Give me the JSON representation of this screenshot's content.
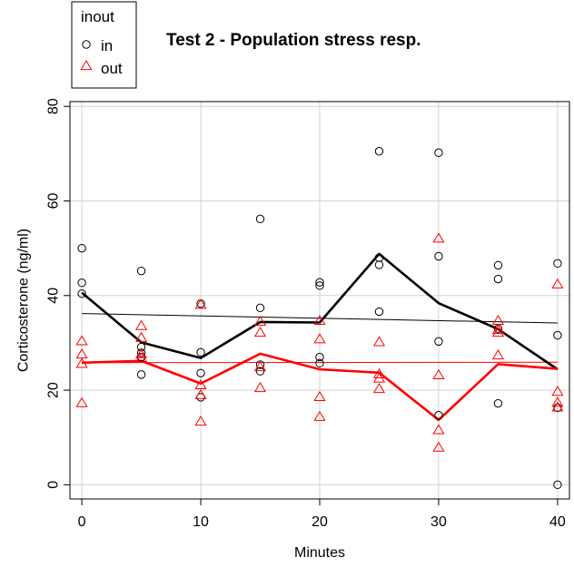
{
  "chart_data": {
    "type": "scatter",
    "title": "Test 2 - Population stress resp.",
    "xlabel": "Minutes",
    "ylabel": "Corticosterone (ng/ml)",
    "xlim": [
      -1,
      41
    ],
    "ylim": [
      -3,
      81
    ],
    "xticks": [
      0,
      10,
      20,
      30,
      40
    ],
    "yticks": [
      0,
      20,
      40,
      60,
      80
    ],
    "grid": true,
    "legend": {
      "title": "inout",
      "placement": "top-left",
      "entries": [
        {
          "label": "in",
          "marker": "circle",
          "color": "#000000"
        },
        {
          "label": "out",
          "marker": "triangle",
          "color": "#ff0000"
        }
      ]
    },
    "series": [
      {
        "name": "in",
        "marker": "circle",
        "color": "#000000",
        "points": [
          [
            0,
            50.0
          ],
          [
            0,
            42.7
          ],
          [
            0,
            40.4
          ],
          [
            5,
            45.2
          ],
          [
            5,
            29.1
          ],
          [
            5,
            27.9
          ],
          [
            5,
            27.0
          ],
          [
            5,
            23.3
          ],
          [
            10,
            38.3
          ],
          [
            10,
            28.0
          ],
          [
            10,
            23.6
          ],
          [
            10,
            18.5
          ],
          [
            15,
            56.2
          ],
          [
            15,
            37.4
          ],
          [
            15,
            25.4
          ],
          [
            15,
            24.0
          ],
          [
            20,
            42.8
          ],
          [
            20,
            42.1
          ],
          [
            20,
            27.0
          ],
          [
            20,
            25.7
          ],
          [
            25,
            70.5
          ],
          [
            25,
            48.0
          ],
          [
            25,
            46.5
          ],
          [
            25,
            36.6
          ],
          [
            30,
            70.2
          ],
          [
            30,
            48.3
          ],
          [
            30,
            30.3
          ],
          [
            30,
            14.7
          ],
          [
            35,
            46.4
          ],
          [
            35,
            43.5
          ],
          [
            35,
            33.0
          ],
          [
            35,
            17.2
          ],
          [
            40,
            46.8
          ],
          [
            40,
            31.6
          ],
          [
            40,
            16.3
          ],
          [
            40,
            0.0
          ]
        ],
        "mean_line": [
          [
            0,
            40.6
          ],
          [
            5,
            30.1
          ],
          [
            10,
            26.8
          ],
          [
            15,
            34.4
          ],
          [
            20,
            34.3
          ],
          [
            25,
            48.8
          ],
          [
            30,
            38.4
          ],
          [
            35,
            32.9
          ],
          [
            40,
            24.4
          ]
        ],
        "trend_line": [
          [
            0,
            36.2
          ],
          [
            40,
            34.2
          ]
        ]
      },
      {
        "name": "out",
        "marker": "triangle",
        "color": "#ff0000",
        "points": [
          [
            0,
            30.3
          ],
          [
            0,
            27.5
          ],
          [
            0,
            25.5
          ],
          [
            0,
            17.2
          ],
          [
            5,
            33.5
          ],
          [
            5,
            31.0
          ],
          [
            5,
            27.5
          ],
          [
            5,
            26.7
          ],
          [
            10,
            38.0
          ],
          [
            10,
            21.0
          ],
          [
            10,
            18.9
          ],
          [
            10,
            13.3
          ],
          [
            15,
            34.4
          ],
          [
            15,
            32.1
          ],
          [
            15,
            24.8
          ],
          [
            15,
            20.4
          ],
          [
            20,
            34.6
          ],
          [
            20,
            30.7
          ],
          [
            20,
            18.5
          ],
          [
            20,
            14.3
          ],
          [
            25,
            30.1
          ],
          [
            25,
            23.3
          ],
          [
            25,
            22.4
          ],
          [
            25,
            20.2
          ],
          [
            30,
            52.0
          ],
          [
            30,
            23.1
          ],
          [
            30,
            11.5
          ],
          [
            30,
            7.8
          ],
          [
            35,
            34.6
          ],
          [
            35,
            32.7
          ],
          [
            35,
            32.1
          ],
          [
            35,
            27.3
          ],
          [
            40,
            42.3
          ],
          [
            40,
            19.6
          ],
          [
            40,
            17.3
          ],
          [
            40,
            16.3
          ]
        ],
        "mean_line": [
          [
            0,
            25.8
          ],
          [
            5,
            26.2
          ],
          [
            10,
            21.4
          ],
          [
            15,
            27.7
          ],
          [
            20,
            24.4
          ],
          [
            25,
            23.7
          ],
          [
            30,
            13.7
          ],
          [
            35,
            25.5
          ],
          [
            40,
            24.5
          ]
        ],
        "trend_line": [
          [
            0,
            25.8
          ],
          [
            40,
            25.9
          ]
        ]
      }
    ]
  }
}
